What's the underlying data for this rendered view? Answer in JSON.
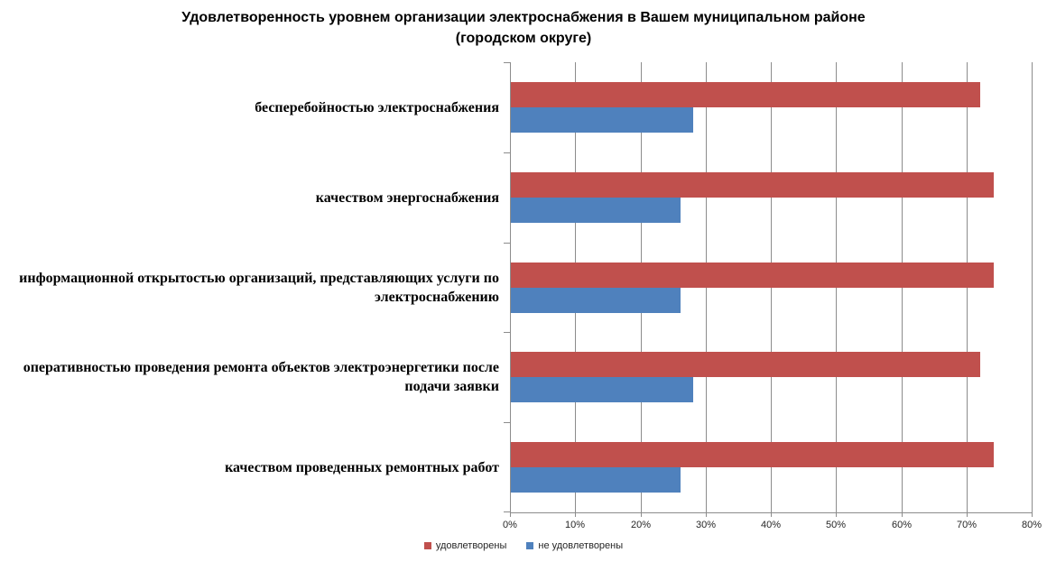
{
  "title": {
    "line1": "Удовлетворенность уровнем организации электроснабжения в Вашем муниципальном районе",
    "line2": "(городском округе)"
  },
  "chart_data": {
    "type": "bar",
    "orientation": "horizontal",
    "title": "Удовлетворенность уровнем организации электроснабжения в Вашем муниципальном районе (городском округе)",
    "categories": [
      "бесперебойностью электроснабжения",
      "качеством энергоснабжения",
      "информационной открытостью организаций, представляющих услуги по электроснабжению",
      "оперативностью проведения ремонта объектов электроэнергетики после подачи заявки",
      "качеством проведенных ремонтных работ"
    ],
    "series": [
      {
        "name": "удовлетворены",
        "color": "#C0504D",
        "values": [
          72,
          74,
          74,
          72,
          74
        ]
      },
      {
        "name": "не удовлетворены",
        "color": "#4F81BD",
        "values": [
          28,
          26,
          26,
          28,
          26
        ]
      }
    ],
    "xlabel": "",
    "ylabel": "",
    "xlim": [
      0,
      80
    ],
    "x_ticks": [
      "0%",
      "10%",
      "20%",
      "30%",
      "40%",
      "50%",
      "60%",
      "70%",
      "80%"
    ],
    "grid": true,
    "legend_position": "bottom",
    "value_format": "percent"
  },
  "styles": {
    "grid_color": "#8C8C8C",
    "axis_color": "#8C8C8C",
    "title_color": "#000000",
    "tick_label_color": "#262626"
  }
}
